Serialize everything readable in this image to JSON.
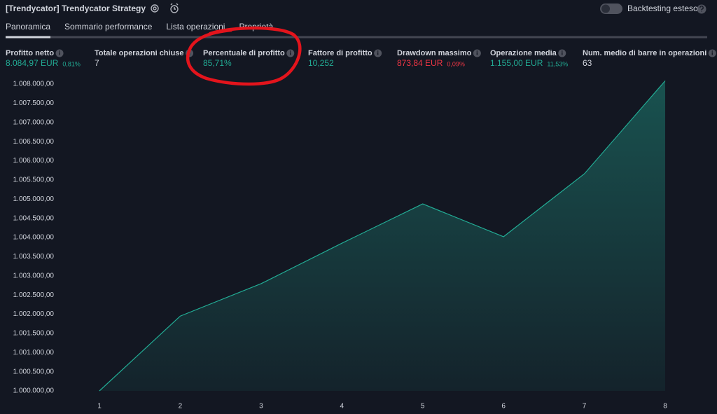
{
  "header": {
    "title": "[Trendycator] Trendycator Strategy",
    "toggle_label": "Backtesting esteso"
  },
  "tabs": [
    "Panoramica",
    "Sommario performance",
    "Lista operazioni",
    "Proprietà"
  ],
  "metrics": [
    {
      "label": "Profitto netto",
      "value": "8.084,97 EUR",
      "change": "0,81%",
      "color": "#22ab94"
    },
    {
      "label": "Totale operazioni chiuse",
      "value": "7",
      "color": "#d1d4dc"
    },
    {
      "label": "Percentuale di profitto",
      "value": "85,71%",
      "color": "#22ab94"
    },
    {
      "label": "Fattore di profitto",
      "value": "10,252",
      "color": "#22ab94"
    },
    {
      "label": "Drawdown massimo",
      "value": "873,84 EUR",
      "change": "0,09%",
      "color": "#f23645"
    },
    {
      "label": "Operazione media",
      "value": "1.155,00 EUR",
      "change": "11,53%",
      "color": "#22ab94"
    },
    {
      "label": "Num. medio di barre in operazioni",
      "value": "63",
      "color": "#d1d4dc"
    }
  ],
  "chart_data": {
    "type": "area",
    "color": "#22ab94",
    "x": [
      1,
      2,
      3,
      4,
      5,
      6,
      7,
      8
    ],
    "values": [
      1000000,
      1001950,
      1002795,
      1003850,
      1004875,
      1004020,
      1005660,
      1008085
    ],
    "xlim": [
      1,
      8
    ],
    "xticks": [
      1,
      2,
      3,
      4,
      5,
      6,
      7,
      8
    ],
    "ylim": [
      1000000,
      1008000
    ],
    "yticks": [
      {
        "value": 1000000,
        "label": "1.000.000,00"
      },
      {
        "value": 1000500,
        "label": "1.000.500,00"
      },
      {
        "value": 1001000,
        "label": "1.001.000,00"
      },
      {
        "value": 1001500,
        "label": "1.001.500,00"
      },
      {
        "value": 1002000,
        "label": "1.002.000,00"
      },
      {
        "value": 1002500,
        "label": "1.002.500,00"
      },
      {
        "value": 1003000,
        "label": "1.003.000,00"
      },
      {
        "value": 1003500,
        "label": "1.003.500,00"
      },
      {
        "value": 1004000,
        "label": "1.004.000,00"
      },
      {
        "value": 1004500,
        "label": "1.004.500,00"
      },
      {
        "value": 1005000,
        "label": "1.005.000,00"
      },
      {
        "value": 1005500,
        "label": "1.005.500,00"
      },
      {
        "value": 1006000,
        "label": "1.006.000,00"
      },
      {
        "value": 1006500,
        "label": "1.006.500,00"
      },
      {
        "value": 1007000,
        "label": "1.007.000,00"
      },
      {
        "value": 1007500,
        "label": "1.007.500,00"
      },
      {
        "value": 1008000,
        "label": "1.008.000,00"
      }
    ]
  }
}
